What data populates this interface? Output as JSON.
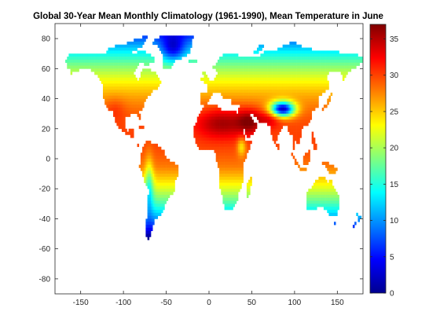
{
  "title": "Global 30-Year Mean Monthly Climatology (1961-1990), Mean Temperature in June",
  "map": {
    "projection": "equirectangular",
    "xlim": [
      -180,
      180
    ],
    "ylim": [
      -90,
      90
    ],
    "x_ticks": [
      -150,
      -100,
      -50,
      0,
      50,
      100,
      150
    ],
    "x_tick_labels": [
      "-150",
      "-100",
      "-50",
      "0",
      "50",
      "100",
      "150"
    ],
    "y_ticks": [
      80,
      60,
      40,
      20,
      0,
      -20,
      -40,
      -60,
      -80
    ],
    "y_tick_labels": [
      "80",
      "60",
      "40",
      "20",
      "0",
      "-20",
      "-40",
      "-60",
      "-80"
    ],
    "background_color": "#ffffff",
    "ocean_color": "#ffffff"
  },
  "colorbar": {
    "colormap": "jet",
    "range": [
      0,
      37
    ],
    "ticks": [
      0,
      5,
      10,
      15,
      20,
      25,
      30,
      35
    ],
    "tick_labels": [
      "0",
      "5",
      "10",
      "15",
      "20",
      "25",
      "30",
      "35"
    ],
    "position": "right"
  }
}
